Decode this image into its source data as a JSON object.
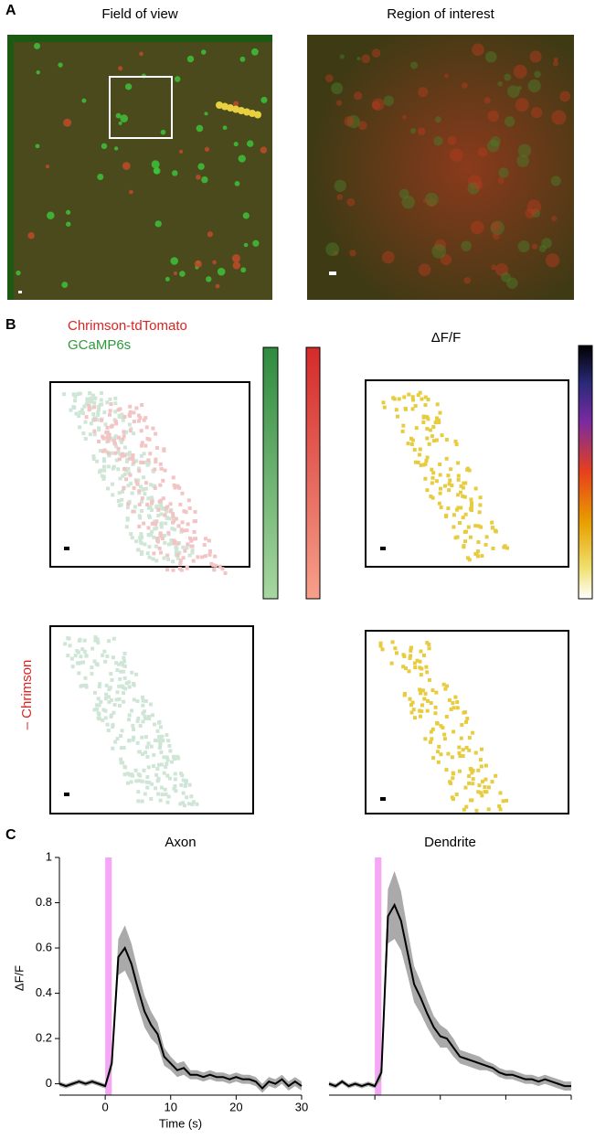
{
  "panels": {
    "a": {
      "label": "A",
      "left_title": "Field of view",
      "right_title": "Region of interest"
    },
    "b": {
      "label": "B",
      "legend_red": "Chrimson-tdTomato",
      "legend_green": "GCaMP6s",
      "heat_title": "ΔF/F",
      "row_label": "– Chrimson"
    },
    "c": {
      "label": "C"
    }
  },
  "chart_data": [
    {
      "type": "line",
      "title": "Axon",
      "x_label": "Time (s)",
      "y_label": "ΔF/F",
      "x": [
        -7,
        -6,
        -5,
        -4,
        -3,
        -2,
        -1,
        0,
        1,
        2,
        3,
        4,
        5,
        6,
        7,
        8,
        9,
        10,
        11,
        12,
        13,
        14,
        15,
        16,
        17,
        18,
        19,
        20,
        21,
        22,
        23,
        24,
        25,
        26,
        27,
        28,
        29,
        30
      ],
      "series": [
        {
          "color": "#000000",
          "band_color": "#aaaaaa",
          "values": [
            0.0,
            -0.01,
            0.0,
            0.01,
            0.0,
            0.01,
            0.0,
            -0.01,
            0.09,
            0.56,
            0.6,
            0.53,
            0.42,
            0.32,
            0.26,
            0.22,
            0.12,
            0.09,
            0.06,
            0.07,
            0.04,
            0.04,
            0.03,
            0.04,
            0.03,
            0.03,
            0.02,
            0.03,
            0.02,
            0.02,
            0.01,
            -0.02,
            0.01,
            0.0,
            0.02,
            -0.01,
            0.01,
            -0.01
          ],
          "errors": [
            0.01,
            0.01,
            0.01,
            0.01,
            0.01,
            0.01,
            0.01,
            0.01,
            0.03,
            0.08,
            0.1,
            0.09,
            0.08,
            0.07,
            0.06,
            0.05,
            0.04,
            0.03,
            0.03,
            0.03,
            0.02,
            0.02,
            0.02,
            0.02,
            0.02,
            0.02,
            0.02,
            0.02,
            0.02,
            0.02,
            0.02,
            0.02,
            0.02,
            0.02,
            0.02,
            0.02,
            0.02,
            0.02
          ]
        }
      ],
      "stimulus": [
        0,
        1
      ],
      "stimulus_color": "#f5a6f5",
      "xlim": [
        -7,
        30
      ],
      "xticks": [
        0,
        10,
        20,
        30
      ],
      "ylim": [
        -0.05,
        1
      ],
      "yticks": [
        0,
        0.2,
        0.4,
        0.6,
        0.8,
        1
      ],
      "tick_labels": true
    },
    {
      "type": "line",
      "title": "Dendrite",
      "x": [
        -7,
        -6,
        -5,
        -4,
        -3,
        -2,
        -1,
        0,
        1,
        2,
        3,
        4,
        5,
        6,
        7,
        8,
        9,
        10,
        11,
        12,
        13,
        14,
        15,
        16,
        17,
        18,
        19,
        20,
        21,
        22,
        23,
        24,
        25,
        26,
        27,
        28,
        29,
        30
      ],
      "series": [
        {
          "color": "#000000",
          "band_color": "#aaaaaa",
          "values": [
            0.0,
            -0.01,
            0.01,
            -0.01,
            0.0,
            -0.01,
            0.0,
            -0.01,
            0.05,
            0.74,
            0.79,
            0.72,
            0.58,
            0.44,
            0.38,
            0.31,
            0.25,
            0.21,
            0.2,
            0.16,
            0.12,
            0.11,
            0.1,
            0.09,
            0.08,
            0.07,
            0.05,
            0.04,
            0.04,
            0.03,
            0.02,
            0.02,
            0.01,
            0.02,
            0.01,
            0.0,
            -0.01,
            -0.01
          ],
          "errors": [
            0.01,
            0.01,
            0.01,
            0.01,
            0.01,
            0.01,
            0.01,
            0.01,
            0.03,
            0.12,
            0.15,
            0.13,
            0.1,
            0.08,
            0.07,
            0.06,
            0.05,
            0.05,
            0.04,
            0.04,
            0.03,
            0.03,
            0.03,
            0.03,
            0.02,
            0.02,
            0.02,
            0.02,
            0.02,
            0.02,
            0.02,
            0.02,
            0.02,
            0.02,
            0.02,
            0.02,
            0.02,
            0.02
          ]
        }
      ],
      "stimulus": [
        0,
        1
      ],
      "stimulus_color": "#f5a6f5",
      "xlim": [
        -7,
        30
      ],
      "xticks": [
        0,
        10,
        20,
        30
      ],
      "ylim": [
        -0.05,
        1
      ],
      "yticks": [
        0,
        0.2,
        0.4,
        0.6,
        0.8,
        1
      ],
      "tick_labels": false
    }
  ]
}
